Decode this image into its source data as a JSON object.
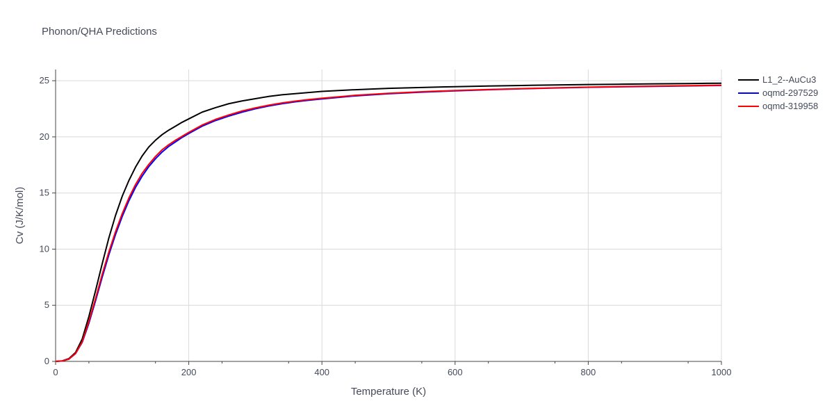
{
  "chart_data": {
    "type": "line",
    "title": "Phonon/QHA Predictions",
    "xlabel": "Temperature (K)",
    "ylabel": "Cv (J/K/mol)",
    "xlim": [
      0,
      1000
    ],
    "ylim": [
      0,
      26
    ],
    "xticks": [
      0,
      200,
      400,
      600,
      800,
      1000
    ],
    "yticks": [
      0,
      5,
      10,
      15,
      20,
      25
    ],
    "grid": true,
    "legend_position": "top-right",
    "series": [
      {
        "name": "L1_2--AuCu3",
        "color": "#000000",
        "x": [
          0,
          10,
          20,
          30,
          40,
          50,
          60,
          70,
          80,
          90,
          100,
          110,
          120,
          130,
          140,
          150,
          160,
          170,
          180,
          190,
          200,
          220,
          240,
          260,
          280,
          300,
          320,
          340,
          360,
          380,
          400,
          450,
          500,
          550,
          600,
          650,
          700,
          750,
          800,
          850,
          900,
          950,
          1000
        ],
        "y": [
          0,
          0.05,
          0.25,
          0.8,
          2.0,
          4.0,
          6.3,
          8.7,
          11.0,
          13.0,
          14.7,
          16.1,
          17.3,
          18.3,
          19.1,
          19.7,
          20.2,
          20.6,
          20.95,
          21.3,
          21.6,
          22.2,
          22.6,
          22.95,
          23.2,
          23.4,
          23.6,
          23.75,
          23.85,
          23.95,
          24.05,
          24.2,
          24.32,
          24.4,
          24.47,
          24.53,
          24.58,
          24.62,
          24.66,
          24.69,
          24.72,
          24.75,
          24.78
        ]
      },
      {
        "name": "oqmd-297529",
        "color": "#0000ff",
        "x": [
          0,
          10,
          20,
          30,
          40,
          50,
          60,
          70,
          80,
          90,
          100,
          110,
          120,
          130,
          140,
          150,
          160,
          170,
          180,
          190,
          200,
          220,
          240,
          260,
          280,
          300,
          320,
          340,
          360,
          380,
          400,
          450,
          500,
          550,
          600,
          650,
          700,
          750,
          800,
          850,
          900,
          950,
          1000
        ],
        "y": [
          0,
          0.04,
          0.2,
          0.7,
          1.7,
          3.4,
          5.4,
          7.5,
          9.5,
          11.3,
          12.9,
          14.3,
          15.5,
          16.5,
          17.35,
          18.05,
          18.65,
          19.15,
          19.55,
          19.95,
          20.3,
          20.95,
          21.45,
          21.85,
          22.2,
          22.5,
          22.75,
          22.95,
          23.12,
          23.26,
          23.38,
          23.65,
          23.84,
          23.98,
          24.1,
          24.2,
          24.28,
          24.35,
          24.41,
          24.46,
          24.5,
          24.54,
          24.58
        ]
      },
      {
        "name": "oqmd-319958",
        "color": "#ff0000",
        "x": [
          0,
          10,
          20,
          30,
          40,
          50,
          60,
          70,
          80,
          90,
          100,
          110,
          120,
          130,
          140,
          150,
          160,
          170,
          180,
          190,
          200,
          220,
          240,
          260,
          280,
          300,
          320,
          340,
          360,
          380,
          400,
          450,
          500,
          550,
          600,
          650,
          700,
          750,
          800,
          850,
          900,
          950,
          1000
        ],
        "y": [
          0,
          0.04,
          0.21,
          0.72,
          1.75,
          3.55,
          5.6,
          7.75,
          9.75,
          11.55,
          13.15,
          14.55,
          15.75,
          16.75,
          17.55,
          18.25,
          18.85,
          19.3,
          19.7,
          20.05,
          20.4,
          21.05,
          21.55,
          21.95,
          22.3,
          22.58,
          22.82,
          23.02,
          23.18,
          23.32,
          23.44,
          23.7,
          23.88,
          24.02,
          24.13,
          24.22,
          24.3,
          24.37,
          24.43,
          24.48,
          24.52,
          24.56,
          24.6
        ]
      }
    ]
  }
}
